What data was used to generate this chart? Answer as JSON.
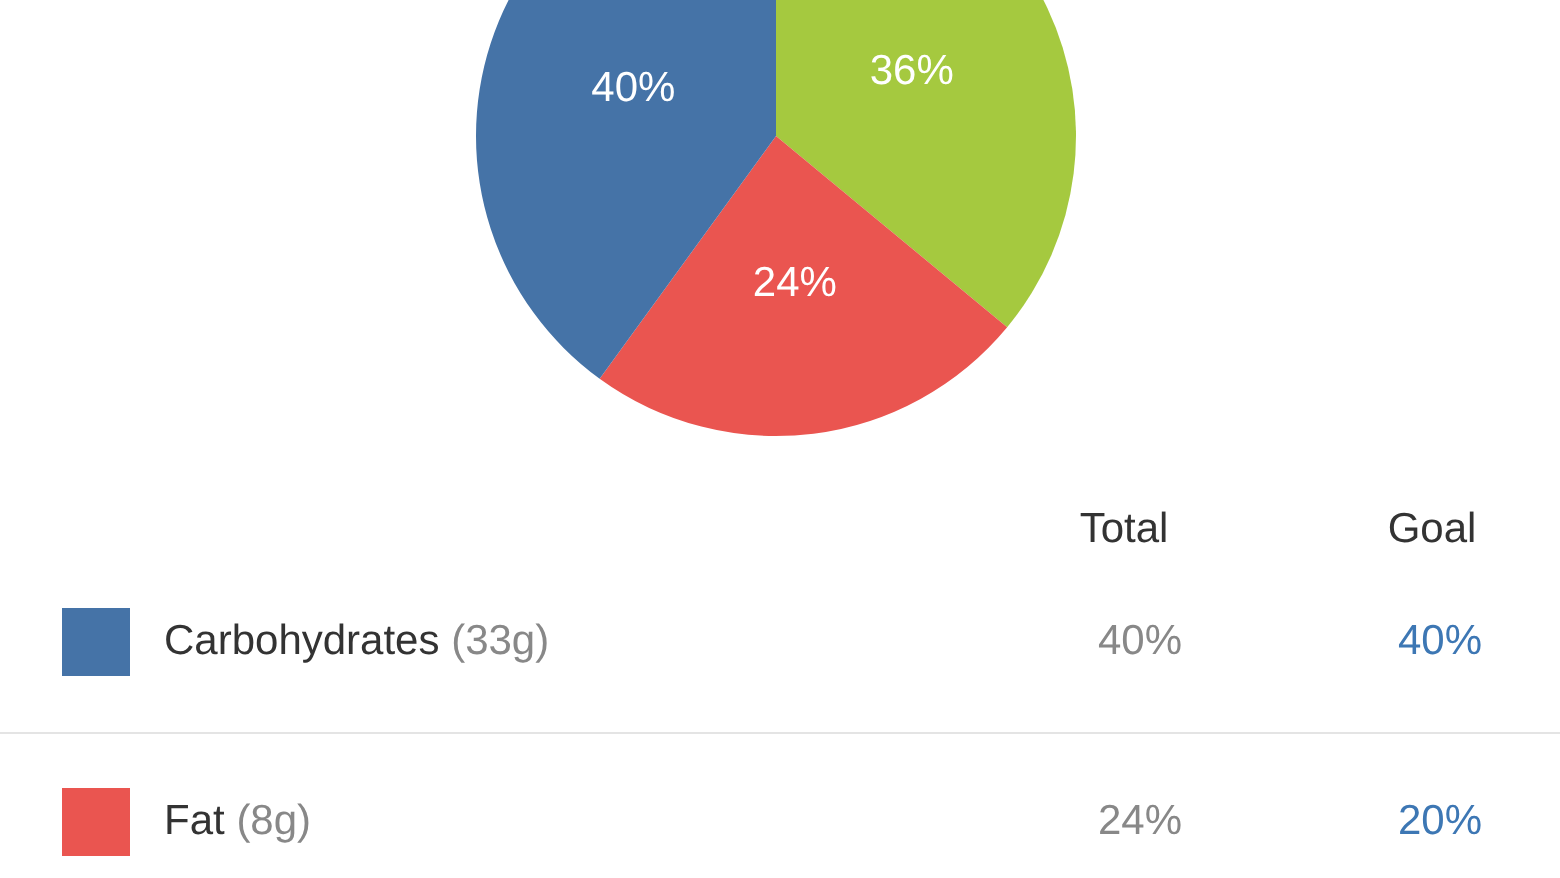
{
  "chart_data": {
    "type": "pie",
    "categories": [
      "Carbohydrates",
      "Fat",
      null
    ],
    "values": [
      40,
      24,
      36
    ],
    "colors": [
      "#4573a7",
      "#ea5550",
      "#a5c93f"
    ],
    "value_labels": [
      "40%",
      "24%",
      "36%"
    ],
    "annotations": [
      "Total",
      "Goal",
      "(33g)",
      "40%",
      "(8g)",
      "20%"
    ],
    "legend": "bottom left"
  }
}
